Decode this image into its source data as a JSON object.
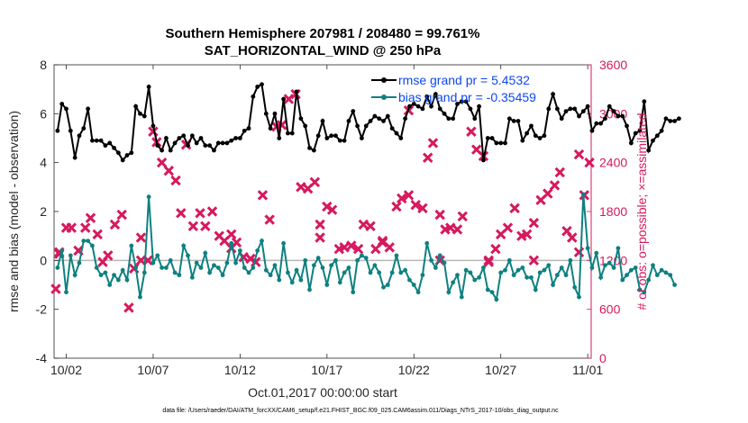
{
  "title_line1": "Southern Hemisphere 207981 / 208480 = 99.761%",
  "title_line2": "SAT_HORIZONTAL_WIND @ 250 hPa",
  "xlabel": "Oct.01,2017 00:00:00 start",
  "ylabel_left": "rmse and bias (model - observation)",
  "ylabel_right": "# of obs: o=possible; ×=assimilated",
  "footnote": "data file: /Users/raeder/DAI/ATM_forcXX/CAM6_setup/f.e21.FHIST_BGC.f09_025.CAM6assim.011/Diags_NTrS_2017-10/obs_diag_output.nc",
  "colors": {
    "rmse": "#000000",
    "bias": "#0f8080",
    "obs": "#d6195e",
    "zero_line": "#b8b8b8",
    "legend_text": "#0d47f0"
  },
  "chart_data": {
    "type": "line",
    "x_unit": "days since Oct.01,2017",
    "xlim": [
      0.3,
      31.2
    ],
    "x_ticks": [
      1,
      6,
      11,
      16,
      21,
      26,
      31
    ],
    "x_tick_labels": [
      "10/02",
      "10/07",
      "10/12",
      "10/17",
      "10/22",
      "10/27",
      "11/01"
    ],
    "ylim": [
      -4,
      8
    ],
    "y_ticks": [
      -4,
      -2,
      0,
      2,
      4,
      6,
      8
    ],
    "y2lim": [
      0,
      3600
    ],
    "y2_ticks": [
      0,
      600,
      1200,
      1800,
      2400,
      3000,
      3600
    ],
    "legend_position": "top-right",
    "series": [
      {
        "name": "rmse grand pr = 5.4532",
        "axis": "left",
        "marker": "filled-circle",
        "start": 0.5,
        "step": 0.25,
        "values": [
          5.3,
          6.4,
          6.2,
          5.3,
          4.2,
          5.1,
          5.4,
          6.2,
          4.9,
          4.9,
          4.9,
          4.7,
          4.8,
          4.6,
          4.4,
          4.1,
          4.3,
          4.4,
          6.3,
          6.0,
          5.9,
          7.1,
          5.5,
          4.7,
          4.5,
          5.0,
          4.5,
          4.8,
          5.0,
          5.1,
          4.7,
          5.1,
          4.8,
          5.0,
          4.7,
          4.7,
          4.5,
          4.8,
          4.8,
          4.8,
          4.9,
          5.0,
          5.0,
          5.3,
          5.4,
          6.7,
          7.1,
          7.2,
          6.0,
          5.4,
          6.0,
          5.0,
          6.6,
          5.2,
          5.2,
          6.9,
          5.8,
          5.5,
          4.6,
          4.5,
          5.1,
          5.7,
          5.0,
          5.1,
          5.1,
          4.9,
          4.9,
          5.7,
          6.1,
          5.5,
          5.0,
          5.5,
          5.7,
          5.9,
          5.8,
          5.7,
          5.9,
          5.4,
          5.2,
          5.0,
          5.8,
          6.3,
          6.4,
          6.3,
          6.2,
          6.7,
          6.3,
          6.8,
          6.2,
          6.0,
          5.8,
          5.8,
          6.4,
          6.5,
          6.5,
          6.2,
          5.8,
          6.3,
          4.1,
          5.0,
          5.0,
          4.8,
          4.8,
          4.8,
          5.8,
          5.7,
          5.7,
          4.9,
          5.2,
          5.5,
          5.1,
          5.0,
          5.1,
          6.2,
          6.8,
          6.2,
          5.8,
          6.1,
          6.2,
          6.2,
          5.9,
          6.1,
          6.3,
          5.3,
          5.6,
          5.6,
          5.8,
          6.3,
          6.1,
          5.9,
          5.9,
          5.5,
          4.8,
          5.2,
          5.3,
          6.5,
          4.5,
          4.9,
          5.1,
          5.3,
          5.8,
          5.7,
          5.7,
          5.8
        ]
      },
      {
        "name": "bias grand pr = -0.35459",
        "axis": "left",
        "marker": "filled-circle",
        "start": 0.5,
        "step": 0.25,
        "values": [
          -0.3,
          0.4,
          -1.3,
          0.2,
          -0.6,
          -0.1,
          0.8,
          0.8,
          0.6,
          -0.3,
          -0.6,
          -0.5,
          -1.0,
          -0.6,
          -0.8,
          -0.4,
          -0.8,
          0.6,
          -0.3,
          -1.5,
          -0.5,
          2.6,
          -0.1,
          0.2,
          -0.3,
          -0.3,
          0.0,
          -0.5,
          -0.6,
          0.6,
          0.2,
          -0.7,
          -0.1,
          -0.3,
          0.3,
          -0.5,
          -0.2,
          -0.3,
          -0.6,
          -0.1,
          0.7,
          -0.1,
          0.4,
          -0.3,
          -0.5,
          -0.3,
          0.4,
          0.8,
          -0.4,
          -0.6,
          -0.2,
          -0.8,
          0.7,
          -0.5,
          -0.9,
          -0.4,
          -0.8,
          0.0,
          -1.2,
          -0.2,
          0.1,
          -0.3,
          -1.0,
          -0.2,
          0.0,
          -0.9,
          -0.5,
          -0.3,
          -1.3,
          0.0,
          0.2,
          0.1,
          -0.5,
          -0.2,
          -0.5,
          -1.1,
          -1.0,
          -0.5,
          0.2,
          -0.5,
          -0.4,
          -0.8,
          -1.0,
          -1.3,
          -0.6,
          0.7,
          0.0,
          -0.3,
          0.2,
          -0.1,
          -1.3,
          -0.9,
          -0.6,
          -1.5,
          -0.4,
          -0.5,
          -0.8,
          -0.7,
          -0.3,
          -1.2,
          -1.3,
          -1.6,
          -0.5,
          -0.4,
          0.0,
          -0.6,
          -0.4,
          -0.3,
          -0.7,
          -0.7,
          -1.2,
          -0.5,
          -0.4,
          -0.2,
          -1.0,
          -0.6,
          -0.3,
          -0.6,
          0.0,
          -1.1,
          -1.5,
          2.7,
          0.5,
          -0.3,
          0.3,
          -0.7,
          -0.2,
          -0.1,
          -0.3,
          0.5,
          -0.8,
          -0.6,
          -0.4,
          -0.3,
          -1.2,
          -1.3,
          -0.8,
          -0.2,
          -0.6,
          -0.4,
          -0.5,
          -0.6,
          -1.0
        ]
      },
      {
        "name": "obs assimilated",
        "axis": "right",
        "marker": "x",
        "points": [
          [
            0.4,
            850
          ],
          [
            0.6,
            1280
          ],
          [
            1.0,
            1600
          ],
          [
            1.3,
            1600
          ],
          [
            1.7,
            1320
          ],
          [
            2.1,
            1600
          ],
          [
            2.4,
            1720
          ],
          [
            2.8,
            1520
          ],
          [
            3.1,
            1180
          ],
          [
            3.4,
            1260
          ],
          [
            3.8,
            1640
          ],
          [
            4.2,
            1760
          ],
          [
            4.6,
            620
          ],
          [
            4.9,
            1100
          ],
          [
            5.3,
            1480
          ],
          [
            5.7,
            1200
          ],
          [
            6.0,
            2780
          ],
          [
            6.2,
            2650
          ],
          [
            6.5,
            2400
          ],
          [
            6.9,
            2300
          ],
          [
            7.3,
            2180
          ],
          [
            7.6,
            1780
          ],
          [
            7.9,
            2620
          ],
          [
            8.3,
            1620
          ],
          [
            8.7,
            1780
          ],
          [
            9.0,
            1620
          ],
          [
            9.4,
            1800
          ],
          [
            9.8,
            1500
          ],
          [
            10.1,
            1440
          ],
          [
            10.5,
            1520
          ],
          [
            10.8,
            1420
          ],
          [
            11.2,
            1240
          ],
          [
            11.6,
            1220
          ],
          [
            11.9,
            1180
          ],
          [
            12.3,
            2000
          ],
          [
            12.7,
            1700
          ],
          [
            13.1,
            2840
          ],
          [
            13.4,
            2860
          ],
          [
            13.8,
            3180
          ],
          [
            14.2,
            3240
          ],
          [
            14.5,
            2100
          ],
          [
            14.9,
            2080
          ],
          [
            15.3,
            2160
          ],
          [
            15.6,
            1640
          ],
          [
            16.0,
            1860
          ],
          [
            16.3,
            1820
          ],
          [
            16.7,
            1340
          ],
          [
            17.0,
            1360
          ],
          [
            17.4,
            1380
          ],
          [
            17.8,
            1340
          ],
          [
            18.1,
            1640
          ],
          [
            18.5,
            1620
          ],
          [
            18.8,
            1340
          ],
          [
            19.2,
            1420
          ],
          [
            19.6,
            1360
          ],
          [
            20.0,
            1860
          ],
          [
            20.3,
            1960
          ],
          [
            20.7,
            2000
          ],
          [
            21.1,
            1880
          ],
          [
            21.5,
            1840
          ],
          [
            21.8,
            2460
          ],
          [
            22.1,
            2640
          ],
          [
            22.5,
            1760
          ],
          [
            22.8,
            1580
          ],
          [
            23.1,
            1600
          ],
          [
            23.5,
            1580
          ],
          [
            23.8,
            1740
          ],
          [
            24.3,
            2780
          ],
          [
            24.6,
            2560
          ],
          [
            25.0,
            2480
          ],
          [
            25.3,
            1180
          ],
          [
            25.7,
            1340
          ],
          [
            26.0,
            1520
          ],
          [
            26.4,
            1600
          ],
          [
            26.8,
            1840
          ],
          [
            27.2,
            1500
          ],
          [
            27.5,
            1520
          ],
          [
            27.9,
            1660
          ],
          [
            28.3,
            1940
          ],
          [
            28.7,
            2020
          ],
          [
            29.1,
            2120
          ],
          [
            29.4,
            2280
          ],
          [
            29.8,
            1560
          ],
          [
            30.1,
            1480
          ],
          [
            30.5,
            2500
          ],
          [
            30.8,
            2000
          ],
          [
            31.1,
            2400
          ]
        ]
      },
      {
        "name": "obs possible",
        "axis": "right",
        "marker": "x",
        "points": [
          [
            0.6,
            1300
          ],
          [
            5.3,
            1200
          ],
          [
            10.5,
            1350
          ],
          [
            15.6,
            1480
          ],
          [
            19.2,
            1440
          ],
          [
            20.7,
            3040
          ],
          [
            22.5,
            1200
          ],
          [
            25.3,
            1200
          ],
          [
            27.9,
            1200
          ],
          [
            30.5,
            1300
          ]
        ]
      }
    ]
  }
}
